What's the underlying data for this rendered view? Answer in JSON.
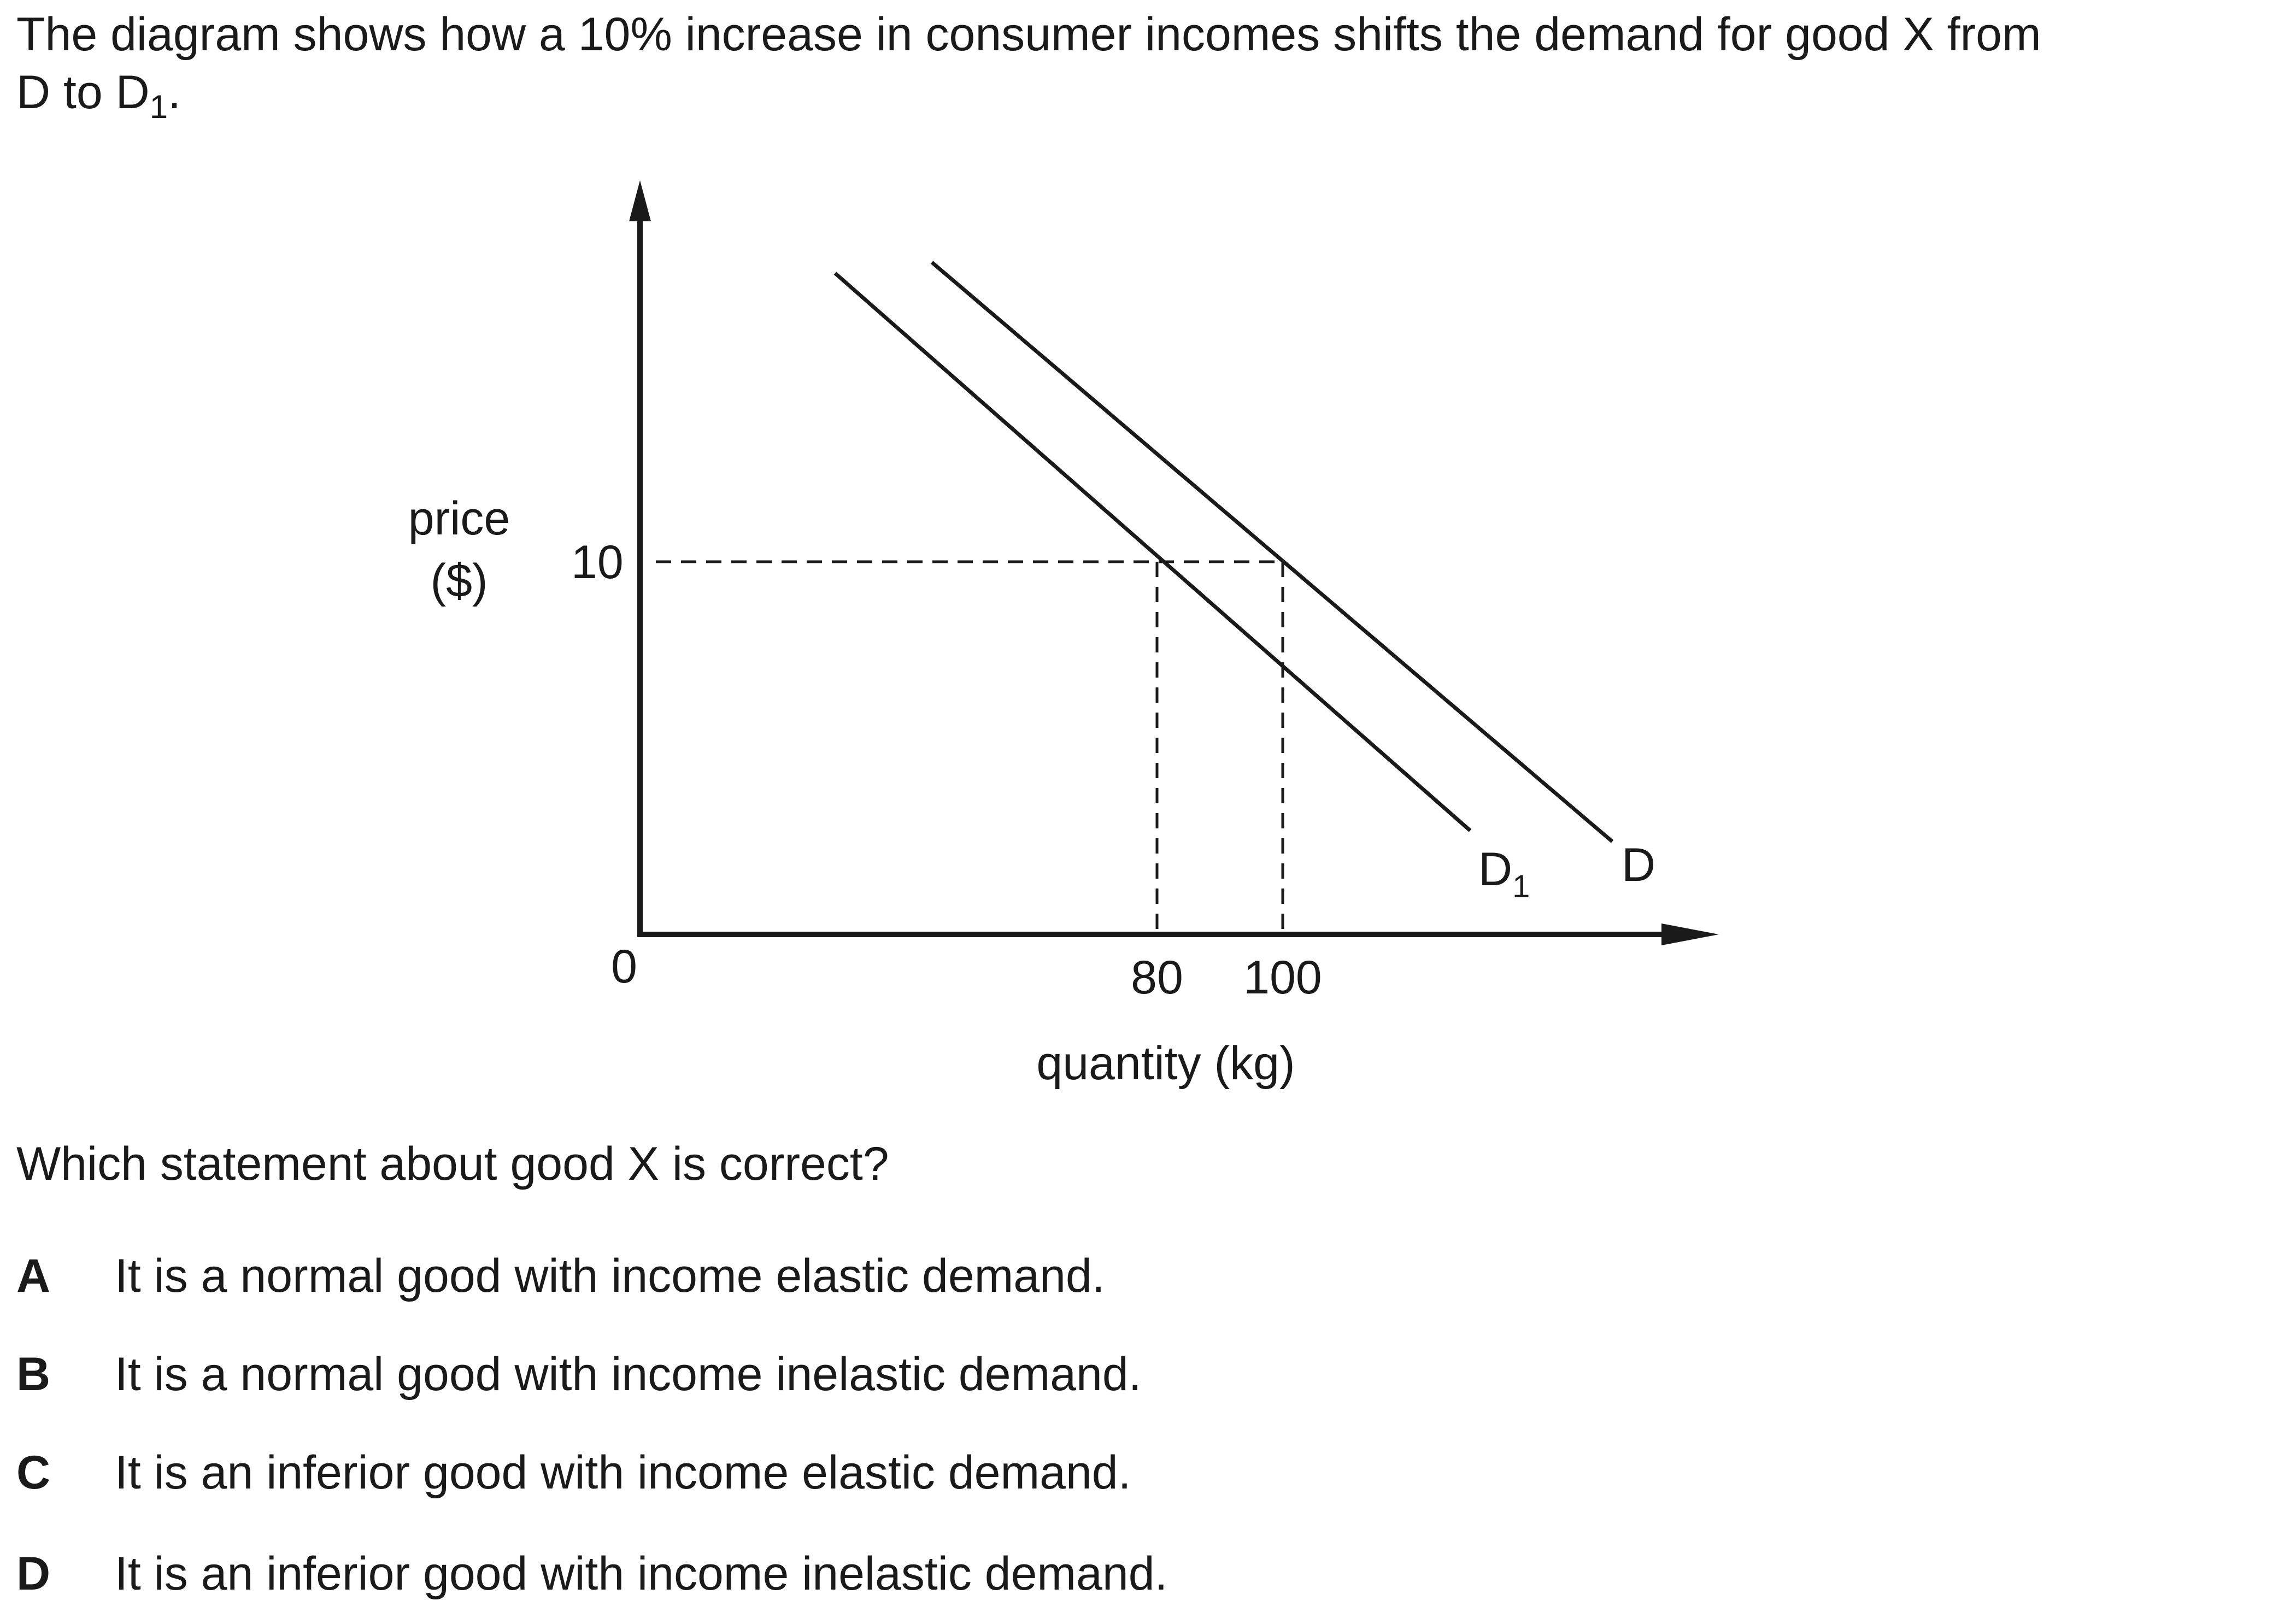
{
  "intro": {
    "text": "The diagram shows how a 10% increase in consumer incomes shifts the demand for good X from",
    "line2_prefix": "D to D",
    "line2_sub": "1",
    "line2_suffix": "."
  },
  "diagram": {
    "y_label_line1": "price",
    "y_label_line2": "($)",
    "x_label": "quantity (kg)",
    "origin_label": "0",
    "price_tick": "10",
    "qty_tick_1": "80",
    "qty_tick_2": "100",
    "curve_d_label": "D",
    "curve_d1_label_main": "D",
    "curve_d1_label_sub": "1"
  },
  "question": "Which statement about good X is correct?",
  "options": [
    {
      "letter": "A",
      "text": "It is a normal good with income elastic demand."
    },
    {
      "letter": "B",
      "text": "It is a normal good with income inelastic demand."
    },
    {
      "letter": "C",
      "text": "It is an inferior good with income elastic demand."
    },
    {
      "letter": "D",
      "text": "It is an inferior good with income inelastic demand."
    }
  ]
}
